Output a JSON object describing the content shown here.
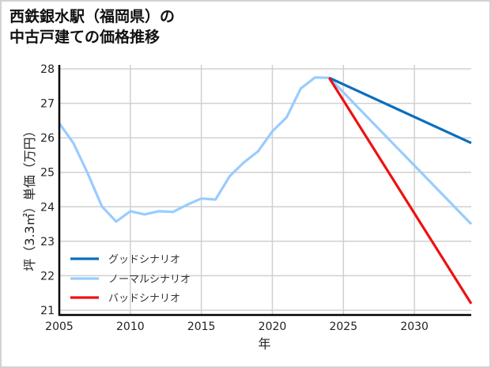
{
  "title": {
    "line1": "西鉄銀水駅（福岡県）の",
    "line2": "中古戸建ての価格推移"
  },
  "chart_data": {
    "type": "line",
    "title": "西鉄銀水駅（福岡県）の中古戸建ての価格推移",
    "xlabel": "年",
    "ylabel": "坪（3.3㎡）単価（万円）",
    "xlim": [
      2005,
      2034
    ],
    "ylim": [
      21,
      28
    ],
    "xticks": [
      2005,
      2010,
      2015,
      2020,
      2025,
      2030
    ],
    "yticks": [
      21,
      22,
      23,
      24,
      25,
      26,
      27,
      28
    ],
    "grid": true,
    "legend_position": "lower left",
    "series": [
      {
        "name": "グッドシナリオ",
        "color": "#0a6ebd",
        "x": [
          2024,
          2034
        ],
        "y": [
          27.74,
          25.85
        ]
      },
      {
        "name": "ノーマルシナリオ",
        "color": "#99ccff",
        "x": [
          2005,
          2006,
          2007,
          2008,
          2009,
          2010,
          2011,
          2012,
          2013,
          2014,
          2015,
          2016,
          2017,
          2018,
          2019,
          2020,
          2021,
          2022,
          2023,
          2024,
          2034
        ],
        "y": [
          26.42,
          25.84,
          24.97,
          24.01,
          23.57,
          23.87,
          23.78,
          23.87,
          23.85,
          24.06,
          24.24,
          24.21,
          24.89,
          25.29,
          25.61,
          26.19,
          26.59,
          27.43,
          27.75,
          27.74,
          23.5
        ]
      },
      {
        "name": "バッドシナリオ",
        "color": "#ee1111",
        "x": [
          2024,
          2034
        ],
        "y": [
          27.74,
          21.19
        ]
      }
    ]
  }
}
